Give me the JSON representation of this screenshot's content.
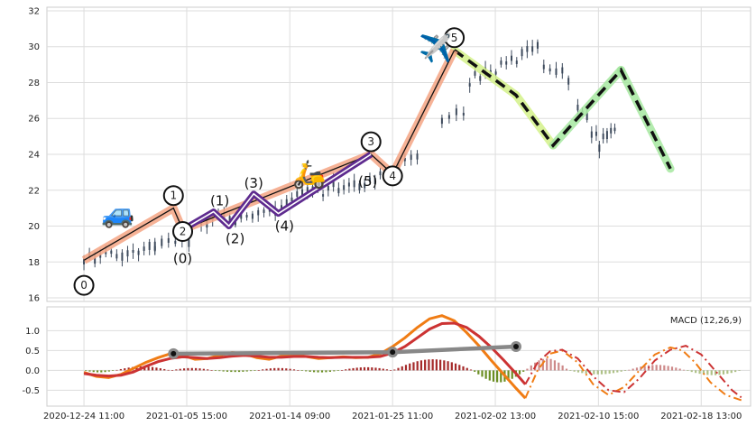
{
  "chart_data": {
    "type": "candlestick-elliott-wave",
    "price_panel": {
      "ylim": [
        15.8,
        32.2
      ],
      "yticks": [
        16,
        18,
        20,
        22,
        24,
        26,
        28,
        30,
        32
      ],
      "grid": true,
      "candles_segments": [
        {
          "x0": 0.0,
          "x1": 2.3,
          "y_start": 18.1,
          "y_end": 18.8,
          "n": 14
        },
        {
          "x0": 2.3,
          "x1": 3.4,
          "y_start": 18.9,
          "y_end": 19.3,
          "n": 6
        },
        {
          "x0": 3.8,
          "x1": 6.2,
          "y_start": 20.2,
          "y_end": 20.9,
          "n": 14
        },
        {
          "x0": 6.4,
          "x1": 9.6,
          "y_start": 21.3,
          "y_end": 22.8,
          "n": 20
        },
        {
          "x0": 10.2,
          "x1": 10.8,
          "y_start": 23.6,
          "y_end": 23.9,
          "n": 4
        },
        {
          "x0": 11.6,
          "x1": 12.3,
          "y_start": 25.9,
          "y_end": 26.1,
          "n": 4
        },
        {
          "x0": 12.5,
          "x1": 14.7,
          "y_start": 28.1,
          "y_end": 29.8,
          "n": 14
        },
        {
          "x0": 14.9,
          "x1": 15.7,
          "y_start": 28.8,
          "y_end": 28.3,
          "n": 5
        },
        {
          "x0": 16.0,
          "x1": 16.6,
          "y_start": 26.6,
          "y_end": 24.9,
          "n": 5
        },
        {
          "x0": 16.7,
          "x1": 17.2,
          "y_start": 24.6,
          "y_end": 25.4,
          "n": 5
        }
      ],
      "primary_wave": {
        "points": [
          [
            0,
            18.1
          ],
          [
            2.9,
            21.0
          ],
          [
            3.2,
            19.8
          ],
          [
            9.3,
            24.0
          ],
          [
            10.0,
            22.9
          ],
          [
            12.0,
            29.8
          ]
        ],
        "labels": [
          "0",
          "1",
          "2",
          "3",
          "4",
          "5"
        ],
        "color": "#f4a584",
        "line_color": "#111111"
      },
      "subwave": {
        "points": [
          [
            3.2,
            19.8
          ],
          [
            4.2,
            20.8
          ],
          [
            4.7,
            20.0
          ],
          [
            5.5,
            21.8
          ],
          [
            6.3,
            20.7
          ],
          [
            9.3,
            24.0
          ]
        ],
        "labels": [
          "(0)",
          "(1)",
          "(2)",
          "(3)",
          "(4)",
          "(5)"
        ],
        "color": "#5e2b8f"
      },
      "projection": {
        "points": [
          [
            12.0,
            29.8
          ],
          [
            14.0,
            27.3
          ],
          [
            15.2,
            24.5
          ],
          [
            17.4,
            28.7
          ],
          [
            19.0,
            23.2
          ]
        ],
        "line_color": "#111111",
        "glow_colors": [
          "#d4f28a",
          "#a6e8a0"
        ]
      },
      "icons": [
        {
          "name": "car-icon",
          "symbol": "🚙",
          "x": 1.1,
          "y": 20.8
        },
        {
          "name": "scooter-icon",
          "symbol": "🛵",
          "x": 7.3,
          "y": 23.0
        },
        {
          "name": "airplane-icon",
          "symbol": "✈️",
          "x": 11.4,
          "y": 30.0
        }
      ]
    },
    "macd_panel": {
      "legend": "MACD (12,26,9)",
      "ylim": [
        -0.9,
        1.6
      ],
      "yticks": [
        -0.5,
        0.0,
        0.5,
        1.0
      ],
      "macd_line": [
        [
          0,
          -0.05
        ],
        [
          0.4,
          -0.15
        ],
        [
          0.8,
          -0.18
        ],
        [
          1.2,
          -0.1
        ],
        [
          1.6,
          0.05
        ],
        [
          2.0,
          0.2
        ],
        [
          2.4,
          0.32
        ],
        [
          2.8,
          0.42
        ],
        [
          3.2,
          0.38
        ],
        [
          3.6,
          0.28
        ],
        [
          4.0,
          0.3
        ],
        [
          4.4,
          0.38
        ],
        [
          4.8,
          0.45
        ],
        [
          5.2,
          0.42
        ],
        [
          5.6,
          0.32
        ],
        [
          6.0,
          0.28
        ],
        [
          6.4,
          0.36
        ],
        [
          6.8,
          0.4
        ],
        [
          7.2,
          0.35
        ],
        [
          7.6,
          0.3
        ],
        [
          8.0,
          0.32
        ],
        [
          8.4,
          0.34
        ],
        [
          8.8,
          0.32
        ],
        [
          9.2,
          0.33
        ],
        [
          9.6,
          0.42
        ],
        [
          10.0,
          0.6
        ],
        [
          10.4,
          0.82
        ],
        [
          10.8,
          1.08
        ],
        [
          11.2,
          1.3
        ],
        [
          11.6,
          1.38
        ],
        [
          12.0,
          1.25
        ],
        [
          12.4,
          0.95
        ],
        [
          12.8,
          0.62
        ],
        [
          13.2,
          0.25
        ],
        [
          13.6,
          -0.1
        ],
        [
          14.0,
          -0.45
        ],
        [
          14.3,
          -0.7
        ]
      ],
      "signal_line": [
        [
          0,
          -0.08
        ],
        [
          0.4,
          -0.12
        ],
        [
          0.8,
          -0.14
        ],
        [
          1.2,
          -0.12
        ],
        [
          1.6,
          -0.04
        ],
        [
          2.0,
          0.1
        ],
        [
          2.4,
          0.22
        ],
        [
          2.8,
          0.3
        ],
        [
          3.2,
          0.34
        ],
        [
          3.6,
          0.32
        ],
        [
          4.0,
          0.3
        ],
        [
          4.4,
          0.32
        ],
        [
          4.8,
          0.36
        ],
        [
          5.2,
          0.38
        ],
        [
          5.6,
          0.36
        ],
        [
          6.0,
          0.33
        ],
        [
          6.4,
          0.33
        ],
        [
          6.8,
          0.35
        ],
        [
          7.2,
          0.35
        ],
        [
          7.6,
          0.33
        ],
        [
          8.0,
          0.32
        ],
        [
          8.4,
          0.33
        ],
        [
          8.8,
          0.33
        ],
        [
          9.2,
          0.33
        ],
        [
          9.6,
          0.35
        ],
        [
          10.0,
          0.44
        ],
        [
          10.4,
          0.6
        ],
        [
          10.8,
          0.82
        ],
        [
          11.2,
          1.04
        ],
        [
          11.6,
          1.18
        ],
        [
          12.0,
          1.19
        ],
        [
          12.4,
          1.08
        ],
        [
          12.8,
          0.86
        ],
        [
          13.2,
          0.58
        ],
        [
          13.6,
          0.26
        ],
        [
          14.0,
          -0.08
        ],
        [
          14.3,
          -0.35
        ]
      ],
      "macd_projection": [
        [
          14.3,
          -0.7
        ],
        [
          14.7,
          0.0
        ],
        [
          15.1,
          0.42
        ],
        [
          15.5,
          0.5
        ],
        [
          16.0,
          0.2
        ],
        [
          16.5,
          -0.35
        ],
        [
          17.0,
          -0.62
        ],
        [
          17.5,
          -0.42
        ],
        [
          18.0,
          0.0
        ],
        [
          18.5,
          0.4
        ],
        [
          19.0,
          0.58
        ],
        [
          19.4,
          0.5
        ],
        [
          19.8,
          0.2
        ],
        [
          20.3,
          -0.3
        ],
        [
          20.8,
          -0.62
        ],
        [
          21.3,
          -0.75
        ]
      ],
      "signal_projection": [
        [
          14.3,
          -0.35
        ],
        [
          14.7,
          0.2
        ],
        [
          15.1,
          0.48
        ],
        [
          15.5,
          0.52
        ],
        [
          16.0,
          0.3
        ],
        [
          16.5,
          -0.15
        ],
        [
          17.0,
          -0.5
        ],
        [
          17.5,
          -0.55
        ],
        [
          18.0,
          -0.2
        ],
        [
          18.5,
          0.25
        ],
        [
          19.0,
          0.52
        ],
        [
          19.5,
          0.62
        ],
        [
          20.0,
          0.4
        ],
        [
          20.5,
          -0.05
        ],
        [
          21.0,
          -0.5
        ],
        [
          21.3,
          -0.68
        ]
      ],
      "divergence_line": {
        "points": [
          [
            2.9,
            0.42
          ],
          [
            10.0,
            0.46
          ],
          [
            14.0,
            0.6
          ]
        ],
        "color": "#888888"
      },
      "histogram": [
        {
          "x0": 0.0,
          "x1": 1.0,
          "amp": -0.05
        },
        {
          "x0": 1.0,
          "x1": 2.8,
          "amp": 0.1
        },
        {
          "x0": 2.8,
          "x1": 4.2,
          "amp": 0.06
        },
        {
          "x0": 4.2,
          "x1": 5.6,
          "amp": -0.04
        },
        {
          "x0": 5.6,
          "x1": 7.0,
          "amp": 0.06
        },
        {
          "x0": 7.0,
          "x1": 8.3,
          "amp": -0.05
        },
        {
          "x0": 8.3,
          "x1": 10.0,
          "amp": 0.08
        },
        {
          "x0": 10.0,
          "x1": 12.6,
          "amp": 0.28
        },
        {
          "x0": 12.6,
          "x1": 14.3,
          "amp": -0.3
        }
      ],
      "histogram_projection": [
        {
          "x0": 14.3,
          "x1": 15.7,
          "amp": 0.3
        },
        {
          "x0": 15.7,
          "x1": 17.6,
          "amp": -0.1
        },
        {
          "x0": 17.6,
          "x1": 19.5,
          "amp": 0.14
        },
        {
          "x0": 19.5,
          "x1": 21.3,
          "amp": -0.12
        }
      ],
      "colors": {
        "macd": "#f07c14",
        "signal": "#cc3333",
        "pos_bar": "#a52a2a",
        "neg_bar": "#6b8e23"
      }
    },
    "x_axis": {
      "xlim": [
        -1.2,
        21.6
      ],
      "ticks": [
        {
          "pos": 0.0,
          "label": "2020-12-24 11:00"
        },
        {
          "pos": 3.33,
          "label": "2021-01-05 15:00"
        },
        {
          "pos": 6.67,
          "label": "2021-01-14 09:00"
        },
        {
          "pos": 10.0,
          "label": "2021-01-25 11:00"
        },
        {
          "pos": 13.33,
          "label": "2021-02-02 13:00"
        },
        {
          "pos": 16.67,
          "label": "2021-02-10 15:00"
        },
        {
          "pos": 20.0,
          "label": "2021-02-18 13:00"
        }
      ]
    }
  }
}
